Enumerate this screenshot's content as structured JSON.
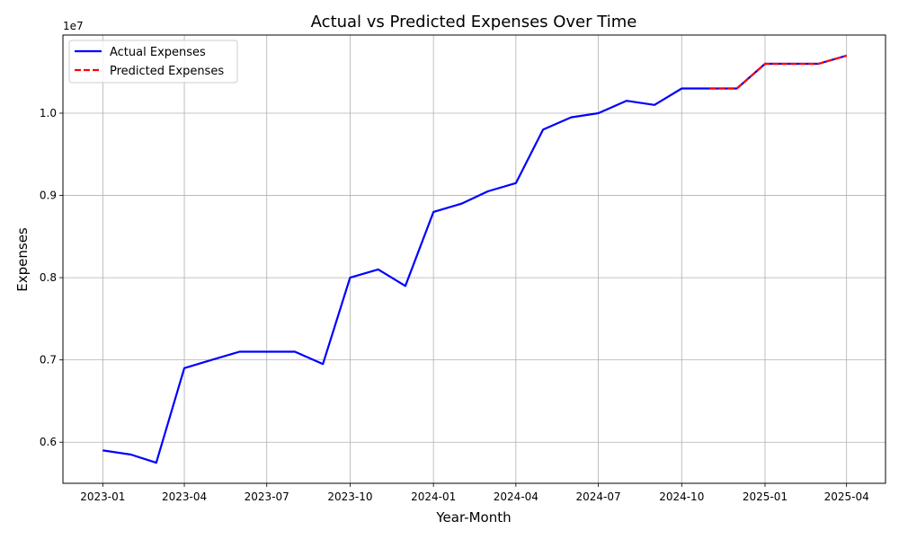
{
  "chart_data": {
    "type": "line",
    "title": "Actual vs Predicted Expenses Over Time",
    "xlabel": "Year-Month",
    "ylabel": "Expenses",
    "y_offset_label": "1e7",
    "y_scale_factor": 10000000,
    "x_tick_labels": [
      "2023-01",
      "2023-04",
      "2023-07",
      "2023-10",
      "2024-01",
      "2024-04",
      "2024-07",
      "2024-10",
      "2025-01",
      "2025-04"
    ],
    "y_tick_values": [
      0.6,
      0.7,
      0.8,
      0.9,
      1.0
    ],
    "y_tick_labels": [
      "0.6",
      "0.7",
      "0.8",
      "0.9",
      "1.0"
    ],
    "ylim": [
      5500000,
      10950000
    ],
    "xlim": [
      "2022-11-18",
      "2025-05-14"
    ],
    "grid": true,
    "legend_position": "top-left",
    "series": [
      {
        "name": "Actual Expenses",
        "color": "#0000ff",
        "style": "solid",
        "x": [
          "2023-01-01",
          "2023-02-01",
          "2023-03-01",
          "2023-04-01",
          "2023-05-01",
          "2023-06-01",
          "2023-07-01",
          "2023-08-01",
          "2023-09-01",
          "2023-10-01",
          "2023-11-01",
          "2023-12-01",
          "2024-01-01",
          "2024-02-01",
          "2024-03-01",
          "2024-04-01",
          "2024-05-01",
          "2024-06-01",
          "2024-07-01",
          "2024-08-01",
          "2024-09-01",
          "2024-10-01",
          "2024-11-01",
          "2024-12-01",
          "2025-01-01",
          "2025-02-01",
          "2025-03-01",
          "2025-04-01"
        ],
        "values": [
          5900000,
          5850000,
          5750000,
          6900000,
          7000000,
          7100000,
          7100000,
          7100000,
          6950000,
          8000000,
          8100000,
          7900000,
          8800000,
          8900000,
          9050000,
          9150000,
          9800000,
          9950000,
          10000000,
          10150000,
          10100000,
          10300000,
          10300000,
          10300000,
          10600000,
          10600000,
          10600000,
          10700000
        ]
      },
      {
        "name": "Predicted Expenses",
        "color": "#ff0000",
        "style": "dashed",
        "x": [
          "2024-11-01",
          "2024-12-01",
          "2025-01-01",
          "2025-02-01",
          "2025-03-01",
          "2025-04-01"
        ],
        "values": [
          10300000,
          10300000,
          10600000,
          10600000,
          10600000,
          10700000
        ]
      }
    ]
  }
}
